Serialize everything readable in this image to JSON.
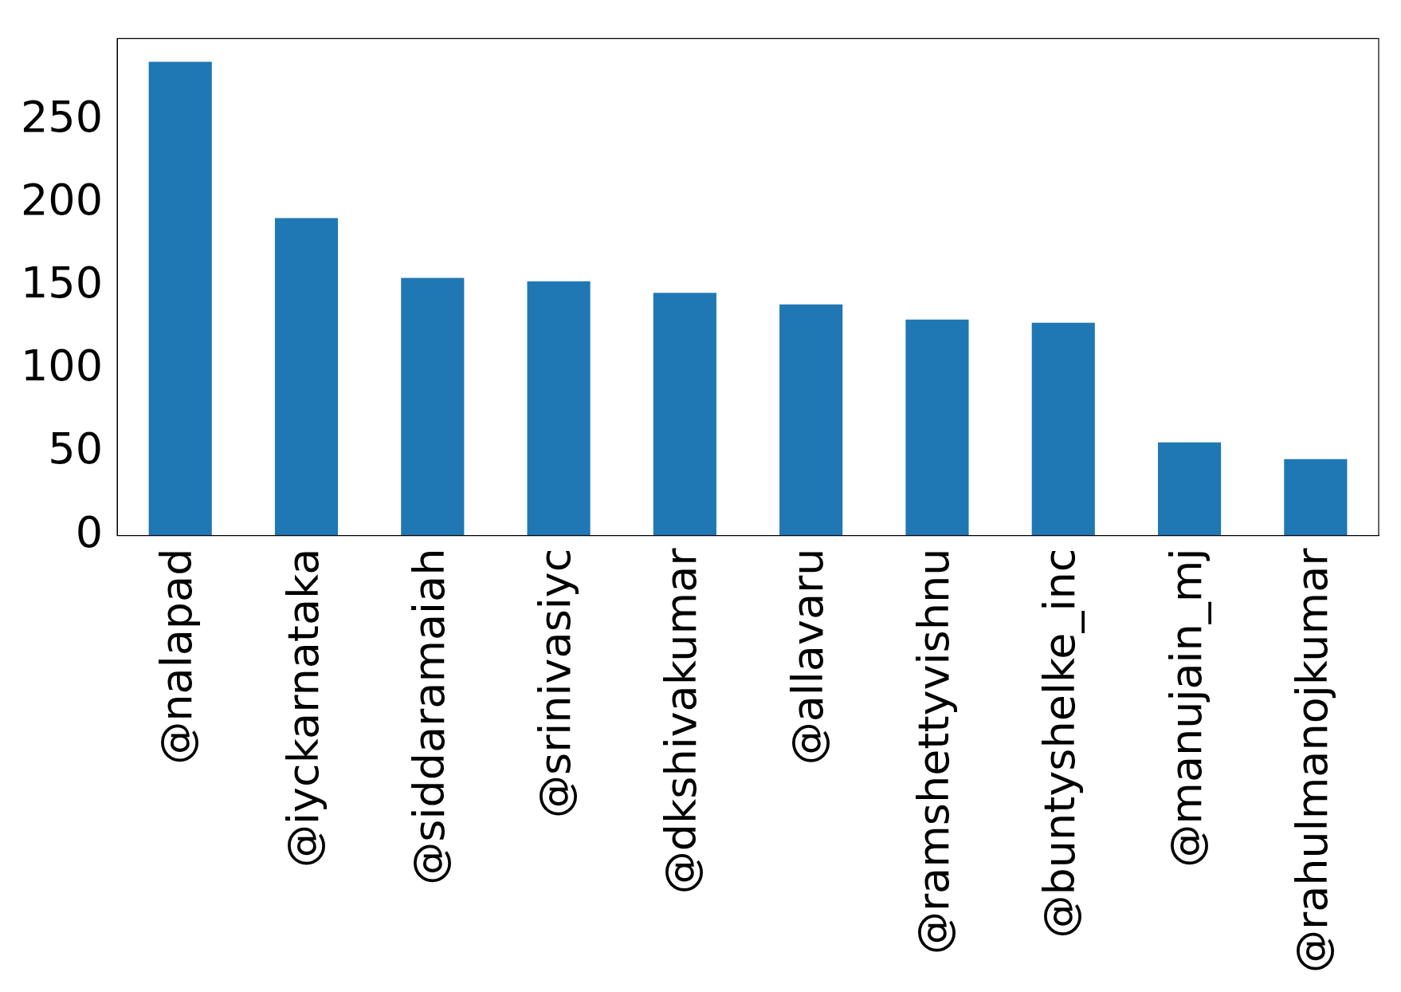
{
  "chart_data": {
    "type": "bar",
    "categories": [
      "@nalapad",
      "@iyckarnataka",
      "@siddaramaiah",
      "@srinivasiyc",
      "@dkshivakumar",
      "@allavaru",
      "@ramshettyvishnu",
      "@buntyshelke_inc",
      "@manujain_mj",
      "@rahulmanojkumar"
    ],
    "values": [
      285,
      191,
      155,
      153,
      146,
      139,
      130,
      128,
      56,
      46
    ],
    "color": "#1f77b4",
    "ylim": [
      0,
      299
    ],
    "yticks": [
      0,
      50,
      100,
      150,
      200,
      250
    ],
    "grid": false,
    "legend": false
  }
}
